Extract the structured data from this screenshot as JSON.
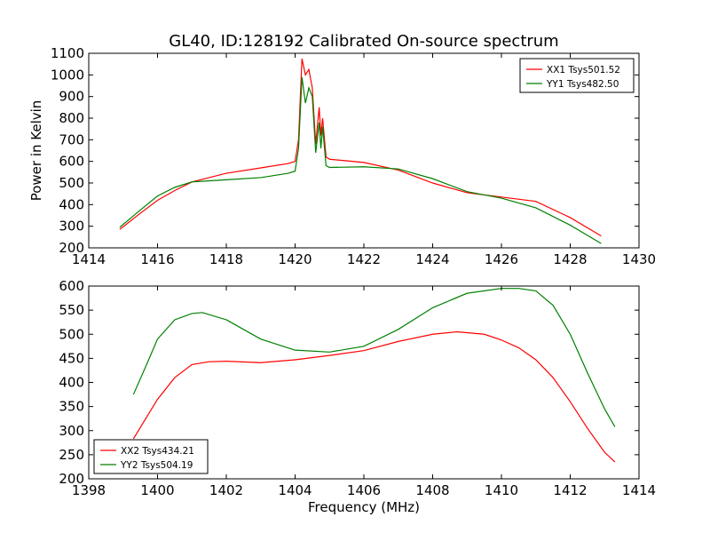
{
  "chart_data": [
    {
      "type": "line",
      "title": "GL40, ID:128192 Calibrated On-source spectrum",
      "xlabel": "",
      "ylabel": "Power in Kelvin",
      "xlim": [
        1414,
        1430
      ],
      "ylim": [
        200,
        1100
      ],
      "xticks": [
        "1414",
        "1416",
        "1418",
        "1420",
        "1422",
        "1424",
        "1426",
        "1428",
        "1430"
      ],
      "yticks": [
        "200",
        "300",
        "400",
        "500",
        "600",
        "700",
        "800",
        "900",
        "1000",
        "1100"
      ],
      "legend_position": "top-right",
      "series": [
        {
          "name": "XX1 Tsys501.52",
          "color": "#ff0000",
          "x": [
            1414.9,
            1415.5,
            1416.0,
            1416.5,
            1417.0,
            1418.0,
            1419.0,
            1419.8,
            1420.0,
            1420.1,
            1420.2,
            1420.3,
            1420.4,
            1420.5,
            1420.6,
            1420.7,
            1420.75,
            1420.8,
            1420.9,
            1421.0,
            1422.0,
            1423.0,
            1424.0,
            1425.0,
            1426.0,
            1427.0,
            1428.0,
            1428.9
          ],
          "y": [
            285,
            360,
            420,
            465,
            505,
            545,
            570,
            590,
            600,
            700,
            1075,
            1000,
            1025,
            940,
            680,
            850,
            720,
            800,
            620,
            610,
            595,
            560,
            500,
            455,
            435,
            415,
            340,
            255
          ]
        },
        {
          "name": "YY1 Tsys482.50",
          "color": "#008000",
          "x": [
            1414.9,
            1415.5,
            1416.0,
            1416.5,
            1417.0,
            1418.0,
            1419.0,
            1419.8,
            1420.0,
            1420.1,
            1420.2,
            1420.3,
            1420.4,
            1420.5,
            1420.6,
            1420.7,
            1420.75,
            1420.8,
            1420.9,
            1421.0,
            1422.0,
            1423.0,
            1424.0,
            1425.0,
            1426.0,
            1427.0,
            1428.0,
            1428.9
          ],
          "y": [
            295,
            375,
            440,
            480,
            505,
            515,
            525,
            545,
            555,
            660,
            990,
            870,
            940,
            900,
            640,
            780,
            660,
            760,
            580,
            572,
            575,
            565,
            520,
            460,
            430,
            385,
            305,
            220
          ]
        }
      ]
    },
    {
      "type": "line",
      "title": "",
      "xlabel": "Frequency (MHz)",
      "ylabel": "",
      "xlim": [
        1398,
        1414
      ],
      "ylim": [
        200,
        600
      ],
      "xticks": [
        "1398",
        "1400",
        "1402",
        "1404",
        "1406",
        "1408",
        "1410",
        "1412",
        "1414"
      ],
      "yticks": [
        "200",
        "250",
        "300",
        "350",
        "400",
        "450",
        "500",
        "550",
        "600"
      ],
      "legend_position": "bottom-left",
      "series": [
        {
          "name": "XX2 Tsys434.21",
          "color": "#ff0000",
          "x": [
            1399.3,
            1399.7,
            1400.0,
            1400.5,
            1401.0,
            1401.5,
            1402.0,
            1403.0,
            1404.0,
            1405.0,
            1406.0,
            1407.0,
            1408.0,
            1408.7,
            1409.5,
            1410.0,
            1410.5,
            1411.0,
            1411.5,
            1412.0,
            1412.5,
            1413.0,
            1413.3
          ],
          "y": [
            283,
            330,
            365,
            410,
            437,
            443,
            444,
            441,
            447,
            456,
            466,
            485,
            500,
            505,
            500,
            488,
            472,
            447,
            410,
            360,
            305,
            255,
            235
          ]
        },
        {
          "name": "YY2 Tsys504.19",
          "color": "#008000",
          "x": [
            1399.3,
            1399.7,
            1400.0,
            1400.5,
            1401.0,
            1401.3,
            1402.0,
            1402.5,
            1403.0,
            1404.0,
            1405.0,
            1406.0,
            1407.0,
            1408.0,
            1409.0,
            1410.0,
            1410.5,
            1411.0,
            1411.5,
            1412.0,
            1412.5,
            1413.0,
            1413.3
          ],
          "y": [
            375,
            440,
            490,
            530,
            543,
            545,
            530,
            510,
            490,
            467,
            463,
            475,
            510,
            555,
            585,
            595,
            595,
            590,
            560,
            500,
            420,
            345,
            308
          ]
        }
      ]
    }
  ]
}
